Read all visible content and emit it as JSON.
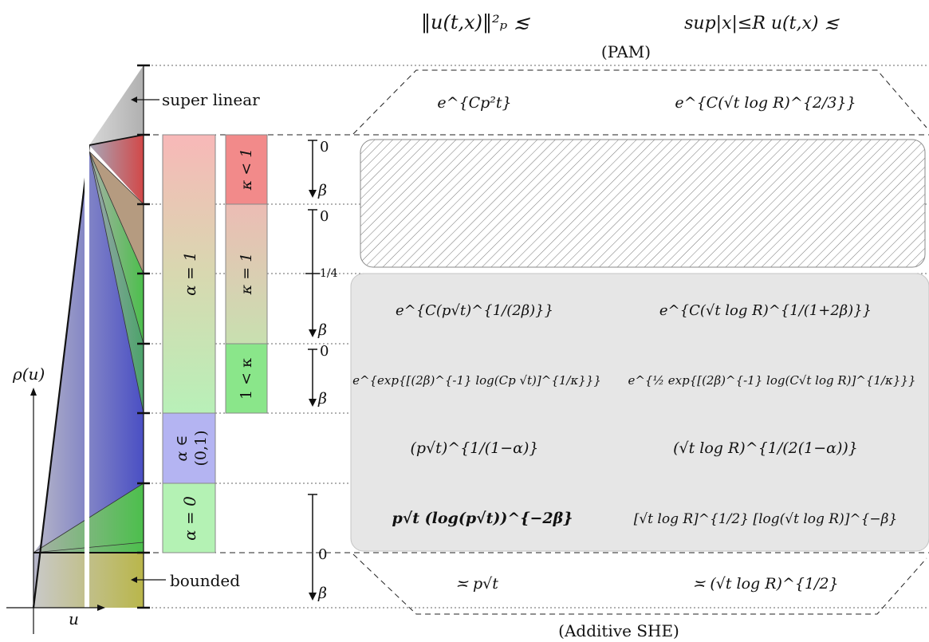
{
  "header": {
    "col1": "‖u(t,x)‖²ₚ ≲",
    "col2": "sup|x|≤R u(t,x) ≲",
    "top_group": "(PAM)",
    "bottom_group": "(Additive SHE)"
  },
  "axes": {
    "y_label": "ρ(u)",
    "x_label": "u"
  },
  "regime_labels": {
    "super_linear": "super linear",
    "bounded": "bounded"
  },
  "alpha_boxes": {
    "alpha_one": "α = 1",
    "alpha_mid_line1": "α ∈",
    "alpha_mid_line2": "(0,1)",
    "alpha_zero": "α = 0"
  },
  "kappa_boxes": {
    "lt_one": "κ < 1",
    "eq_one": "κ = 1",
    "gt_one": "1 < κ"
  },
  "beta_ticks": {
    "zero": "0",
    "quarter": "1/4",
    "beta": "β"
  },
  "formulas": {
    "pam_col1": "e^{Cp²t}",
    "pam_col2": "e^{C(√t log R)^{2/3}}",
    "row1_col1": "e^{C(p√t)^{1/(2β)}}",
    "row1_col2": "e^{C(√t log R)^{1/(1+2β)}}",
    "row2_col1": "e^{exp{[(2β)^{-1} log(Cp √t)]^{1/κ}}}",
    "row2_col2": "e^{½ exp{[(2β)^{-1} log(C√t log R)]^{1/κ}}}",
    "row3_col1": "(p√t)^{1/(1−α)}",
    "row3_col2": "(√t log R)^{1/(2(1−α))}",
    "row4_col1": "p√t (log(p√t))^{−2β}",
    "row4_col2": "[√t log R]^{1/2} [log(√t log R)]^{−β}",
    "she_col1": "≍ p√t",
    "she_col2": "≍ (√t log R)^{1/2}"
  },
  "colors": {
    "red": "#d9534f",
    "blue": "#4a4fc4",
    "green": "#4cbf4c",
    "olive": "#b9b64a",
    "gray_panel": "#e6e6e6"
  }
}
